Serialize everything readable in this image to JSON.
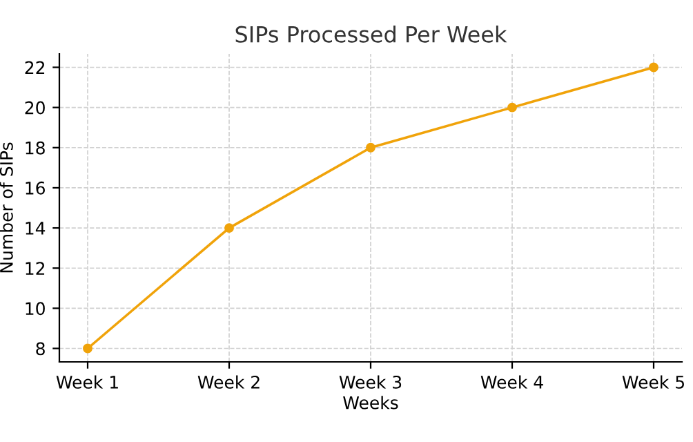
{
  "chart_data": {
    "type": "line",
    "title": "SIPs Processed Per Week",
    "xlabel": "Weeks",
    "ylabel": "Number of SIPs",
    "categories": [
      "Week 1",
      "Week 2",
      "Week 3",
      "Week 4",
      "Week 5"
    ],
    "series": [
      {
        "color": "#f0a30a",
        "values": [
          8,
          14,
          18,
          20,
          22
        ]
      }
    ],
    "ylim": [
      7.33,
      22.67
    ],
    "yticks": [
      8,
      10,
      12,
      14,
      16,
      18,
      20,
      22
    ],
    "grid": true,
    "marker": "circle",
    "line_style": "solid"
  }
}
